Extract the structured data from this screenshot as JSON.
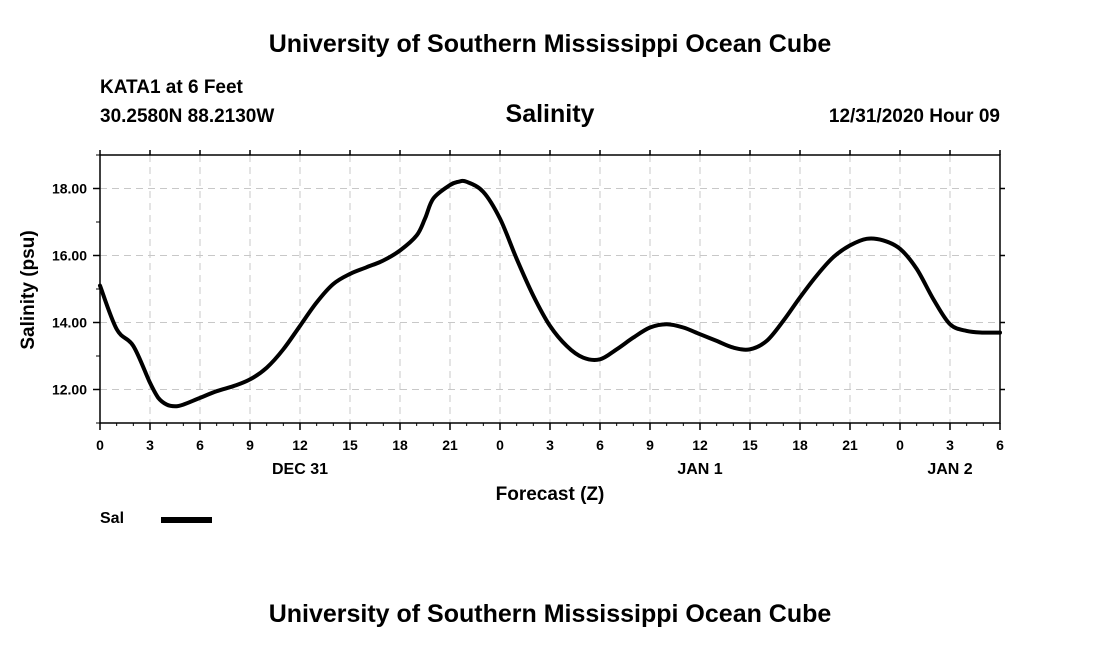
{
  "header": {
    "title": "University of Southern Mississippi Ocean Cube",
    "footer_title": "University of Southern Mississippi Ocean Cube",
    "station": "KATA1 at 6 Feet",
    "coords": "30.2580N 88.2130W",
    "run_time": "12/31/2020 Hour 09"
  },
  "legend": {
    "label": "Sal"
  },
  "chart_data": {
    "type": "line",
    "title": "Salinity",
    "xlabel": "Forecast (Z)",
    "ylabel": "Salinity (psu)",
    "x_unit": "forecast hour (from 00Z Dec 31)",
    "xlim": [
      0,
      54
    ],
    "ylim": [
      11.0,
      19.0
    ],
    "grid": true,
    "xticks": [
      0,
      3,
      6,
      9,
      12,
      15,
      18,
      21,
      24,
      27,
      30,
      33,
      36,
      39,
      42,
      45,
      48,
      51,
      54
    ],
    "xtick_labels": [
      "0",
      "3",
      "6",
      "9",
      "12",
      "15",
      "18",
      "21",
      "0",
      "3",
      "6",
      "9",
      "12",
      "15",
      "18",
      "21",
      "0",
      "3",
      "6"
    ],
    "yticks": [
      12,
      14,
      16,
      18
    ],
    "ytick_labels": [
      "12.00",
      "14.00",
      "16.00",
      "18.00"
    ],
    "date_labels": [
      {
        "x": 12,
        "label": "DEC 31"
      },
      {
        "x": 36,
        "label": "JAN 1"
      },
      {
        "x": 51,
        "label": "JAN 2"
      }
    ],
    "series": [
      {
        "name": "Sal",
        "color": "#000000",
        "x": [
          0,
          1,
          2,
          3,
          3.5,
          4,
          4.5,
          5,
          6,
          7,
          8,
          9,
          10,
          11,
          12,
          13,
          14,
          15,
          16,
          17,
          18,
          19,
          19.5,
          20,
          21,
          21.5,
          22,
          23,
          24,
          25,
          26,
          27,
          28,
          29,
          30,
          31,
          32,
          33,
          34,
          35,
          36,
          37,
          38,
          39,
          40,
          41,
          42,
          43,
          44,
          45,
          46,
          47,
          48,
          49,
          50,
          51,
          52,
          53,
          54
        ],
        "values": [
          15.1,
          13.8,
          13.3,
          12.2,
          11.75,
          11.55,
          11.5,
          11.55,
          11.75,
          11.95,
          12.1,
          12.3,
          12.65,
          13.2,
          13.9,
          14.6,
          15.15,
          15.45,
          15.65,
          15.85,
          16.15,
          16.6,
          17.1,
          17.7,
          18.1,
          18.2,
          18.2,
          17.9,
          17.1,
          15.9,
          14.8,
          13.9,
          13.3,
          12.95,
          12.9,
          13.2,
          13.55,
          13.85,
          13.95,
          13.85,
          13.65,
          13.45,
          13.25,
          13.2,
          13.45,
          14.05,
          14.75,
          15.4,
          15.95,
          16.3,
          16.5,
          16.45,
          16.2,
          15.6,
          14.7,
          13.95,
          13.75,
          13.7,
          13.7
        ]
      }
    ]
  }
}
